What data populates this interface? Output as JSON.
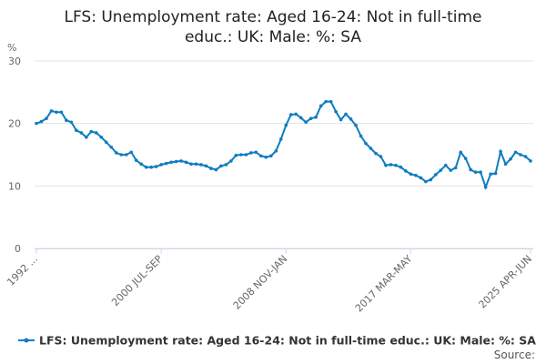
{
  "chart_data": {
    "type": "line",
    "title": [
      "LFS: Unemployment rate: Aged 16-24: Not in full-time",
      "educ.: UK: Male: %: SA"
    ],
    "y_label": "%",
    "source": "Source:",
    "ylim": [
      0,
      30
    ],
    "yticks": [
      0,
      10,
      20,
      30
    ],
    "grid": true,
    "legend": "bottom",
    "categories": [
      "1992 ...",
      null,
      null,
      null,
      null,
      null,
      null,
      null,
      null,
      null,
      null,
      null,
      null,
      null,
      null,
      null,
      null,
      null,
      null,
      null,
      null,
      null,
      null,
      null,
      null,
      "2000 JUL-SEP",
      null,
      null,
      null,
      null,
      null,
      null,
      null,
      null,
      null,
      null,
      null,
      null,
      null,
      null,
      null,
      null,
      null,
      null,
      null,
      null,
      null,
      null,
      null,
      null,
      "2008 NOV-JAN",
      null,
      null,
      null,
      null,
      null,
      null,
      null,
      null,
      null,
      null,
      null,
      null,
      null,
      null,
      null,
      null,
      null,
      null,
      null,
      null,
      null,
      null,
      null,
      null,
      "2017 MAR-MAY",
      null,
      null,
      null,
      null,
      null,
      null,
      null,
      null,
      null,
      null,
      null,
      null,
      null,
      null,
      null,
      null,
      null,
      null,
      null,
      null,
      null,
      null,
      null,
      "2025 APR-JUN"
    ],
    "series": [
      {
        "name": "LFS: Unemployment rate: Aged 16-24: Not in full-time educ.: UK: Male: %: SA",
        "color": "#0e7cc1",
        "values": [
          20.0,
          20.3,
          20.8,
          22.0,
          21.8,
          21.8,
          20.5,
          20.2,
          18.9,
          18.5,
          17.8,
          18.7,
          18.5,
          17.8,
          17.0,
          16.2,
          15.3,
          15.0,
          15.0,
          15.4,
          14.1,
          13.5,
          13.0,
          13.0,
          13.1,
          13.4,
          13.6,
          13.8,
          13.9,
          14.0,
          13.8,
          13.5,
          13.5,
          13.4,
          13.2,
          12.8,
          12.6,
          13.2,
          13.4,
          14.0,
          14.9,
          15.0,
          15.0,
          15.3,
          15.4,
          14.8,
          14.6,
          14.8,
          15.6,
          17.5,
          19.7,
          21.4,
          21.5,
          20.9,
          20.2,
          20.8,
          21.0,
          22.8,
          23.5,
          23.5,
          21.9,
          20.6,
          21.5,
          20.7,
          19.7,
          18.0,
          16.8,
          16.0,
          15.2,
          14.7,
          13.3,
          13.4,
          13.3,
          13.0,
          12.4,
          11.9,
          11.7,
          11.3,
          10.7,
          11.0,
          11.8,
          12.5,
          13.3,
          12.5,
          12.9,
          15.4,
          14.4,
          12.6,
          12.2,
          12.2,
          9.8,
          11.9,
          12.0,
          15.5,
          13.5,
          14.3,
          15.4,
          15.0,
          14.7,
          14.0
        ]
      }
    ]
  }
}
